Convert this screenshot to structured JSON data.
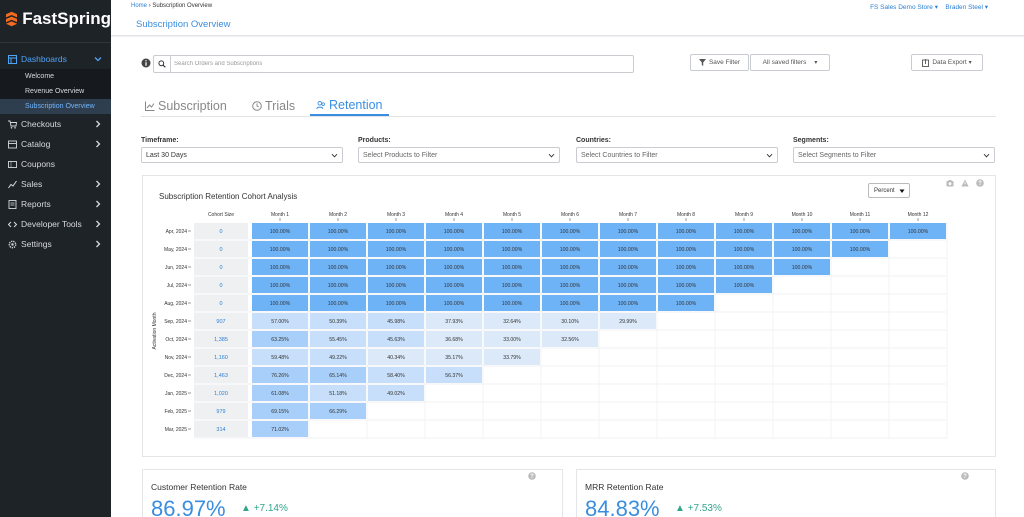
{
  "brand": "FastSpring",
  "sidebar": {
    "items": [
      {
        "label": "Dashboards",
        "icon": "dashboard-icon",
        "active": true,
        "expanded": true
      },
      {
        "label": "Checkouts",
        "icon": "cart-icon"
      },
      {
        "label": "Catalog",
        "icon": "catalog-icon"
      },
      {
        "label": "Coupons",
        "icon": "coupon-icon"
      },
      {
        "label": "Sales",
        "icon": "sales-icon"
      },
      {
        "label": "Reports",
        "icon": "reports-icon"
      },
      {
        "label": "Developer Tools",
        "icon": "code-icon"
      },
      {
        "label": "Settings",
        "icon": "gear-icon"
      }
    ],
    "dashboard_sub": [
      "Welcome",
      "Revenue Overview",
      "Subscription Overview"
    ]
  },
  "topbar": {
    "breadcrumb_home": "Home",
    "breadcrumb_current": "Subscription Overview",
    "page_title": "Subscription Overview",
    "store": "FS Sales Demo Store",
    "user": "Braden Steel"
  },
  "search": {
    "placeholder": "Search Orders and Subscriptions"
  },
  "toolbar": {
    "save_filter": "Save Filter",
    "saved_filters": "All saved filters",
    "data_export": "Data Export"
  },
  "tabs": [
    "Subscription",
    "Trials",
    "Retention"
  ],
  "filters": {
    "timeframe": {
      "label": "Timeframe:",
      "value": "Last 30 Days"
    },
    "products": {
      "label": "Products:",
      "placeholder": "Select Products to Filter"
    },
    "countries": {
      "label": "Countries:",
      "placeholder": "Select Countries to Filter"
    },
    "segments": {
      "label": "Segments:",
      "placeholder": "Select Segments to Filter"
    }
  },
  "cohort": {
    "title": "Subscription Retention Cohort Analysis",
    "view": "Percent",
    "y_axis_label": "Activation Month",
    "cohort_size_header": "Cohort Size",
    "months": [
      "Month 1",
      "Month 2",
      "Month 3",
      "Month 4",
      "Month 5",
      "Month 6",
      "Month 7",
      "Month 8",
      "Month 9",
      "Month 10",
      "Month 11",
      "Month 12"
    ],
    "colors": {
      "full": "#6fb3f7",
      "high": "#a8cff9",
      "mid": "#c7dffa",
      "low": "#dbe9f8",
      "cs_bg": "#eef0f2"
    },
    "rows": [
      {
        "label": "Apr, 2024",
        "size": "0",
        "values": [
          "100.00%",
          "100.00%",
          "100.00%",
          "100.00%",
          "100.00%",
          "100.00%",
          "100.00%",
          "100.00%",
          "100.00%",
          "100.00%",
          "100.00%",
          "100.00%"
        ]
      },
      {
        "label": "May, 2024",
        "size": "0",
        "values": [
          "100.00%",
          "100.00%",
          "100.00%",
          "100.00%",
          "100.00%",
          "100.00%",
          "100.00%",
          "100.00%",
          "100.00%",
          "100.00%",
          "100.00%"
        ]
      },
      {
        "label": "Jun, 2024",
        "size": "0",
        "values": [
          "100.00%",
          "100.00%",
          "100.00%",
          "100.00%",
          "100.00%",
          "100.00%",
          "100.00%",
          "100.00%",
          "100.00%",
          "100.00%"
        ]
      },
      {
        "label": "Jul, 2024",
        "size": "0",
        "values": [
          "100.00%",
          "100.00%",
          "100.00%",
          "100.00%",
          "100.00%",
          "100.00%",
          "100.00%",
          "100.00%",
          "100.00%"
        ]
      },
      {
        "label": "Aug, 2024",
        "size": "0",
        "values": [
          "100.00%",
          "100.00%",
          "100.00%",
          "100.00%",
          "100.00%",
          "100.00%",
          "100.00%",
          "100.00%"
        ]
      },
      {
        "label": "Sep, 2024",
        "size": "907",
        "values": [
          "57.00%",
          "50.39%",
          "45.98%",
          "37.93%",
          "32.64%",
          "30.10%",
          "29.99%"
        ]
      },
      {
        "label": "Oct, 2024",
        "size": "1,385",
        "values": [
          "63.25%",
          "55.45%",
          "45.63%",
          "36.68%",
          "33.00%",
          "32.56%"
        ]
      },
      {
        "label": "Nov, 2024",
        "size": "1,160",
        "values": [
          "59.48%",
          "49.22%",
          "40.34%",
          "35.17%",
          "33.79%"
        ]
      },
      {
        "label": "Dec, 2024",
        "size": "1,463",
        "values": [
          "76.26%",
          "65.14%",
          "58.40%",
          "56.37%"
        ]
      },
      {
        "label": "Jan, 2025",
        "size": "1,020",
        "values": [
          "61.08%",
          "51.18%",
          "49.02%"
        ]
      },
      {
        "label": "Feb, 2025",
        "size": "979",
        "values": [
          "69.15%",
          "66.29%"
        ]
      },
      {
        "label": "Mar, 2025",
        "size": "314",
        "values": [
          "71.02%"
        ]
      }
    ]
  },
  "kpis": [
    {
      "label": "Customer Retention Rate",
      "value": "86.97%",
      "delta": "+7.14%"
    },
    {
      "label": "MRR Retention Rate",
      "value": "84.83%",
      "delta": "+7.53%"
    }
  ]
}
